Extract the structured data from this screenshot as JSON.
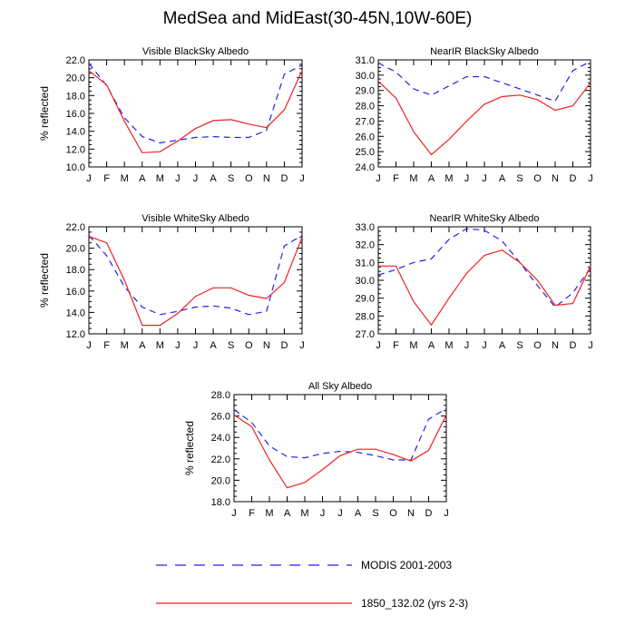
{
  "page": {
    "title": "MedSea and MidEast(30-45N,10W-60E)"
  },
  "legend": [
    {
      "name": "MODIS 2001-2003",
      "color": "#2222ee",
      "dash": true
    },
    {
      "name": "1850_132.02 (yrs 2-3)",
      "color": "#ee2222",
      "dash": false
    }
  ],
  "chart_data": [
    {
      "type": "line",
      "title": "Visible BlackSky Albedo",
      "ylabel": "% reflected",
      "categories": [
        "J",
        "F",
        "M",
        "A",
        "M",
        "J",
        "J",
        "A",
        "S",
        "O",
        "N",
        "D",
        "J"
      ],
      "ylim": [
        10,
        22
      ],
      "yticks": [
        "10.0",
        "12.0",
        "14.0",
        "16.0",
        "18.0",
        "20.0",
        "22.0"
      ],
      "series": [
        {
          "name": "MODIS 2001-2003",
          "color": "#2222ee",
          "dash": true,
          "values": [
            21.6,
            19.1,
            15.5,
            13.4,
            12.7,
            13.0,
            13.3,
            13.4,
            13.3,
            13.3,
            14.1,
            20.4,
            21.4
          ]
        },
        {
          "name": "1850_132.02 (yrs 2-3)",
          "color": "#ee2222",
          "dash": false,
          "values": [
            20.8,
            19.2,
            15.1,
            11.6,
            11.7,
            12.9,
            14.3,
            15.2,
            15.3,
            14.8,
            14.4,
            16.4,
            20.8
          ]
        }
      ]
    },
    {
      "type": "line",
      "title": "NearIR BlackSky Albedo",
      "ylabel": "",
      "categories": [
        "J",
        "F",
        "M",
        "A",
        "M",
        "J",
        "J",
        "A",
        "S",
        "O",
        "N",
        "D",
        "J"
      ],
      "ylim": [
        24,
        31
      ],
      "yticks": [
        "24.0",
        "25.0",
        "26.0",
        "27.0",
        "28.0",
        "29.0",
        "30.0",
        "31.0"
      ],
      "series": [
        {
          "name": "MODIS 2001-2003",
          "color": "#2222ee",
          "dash": true,
          "values": [
            30.8,
            30.2,
            29.1,
            28.7,
            29.3,
            29.9,
            29.9,
            29.5,
            29.1,
            28.7,
            28.3,
            30.3,
            30.9
          ]
        },
        {
          "name": "1850_132.02 (yrs 2-3)",
          "color": "#ee2222",
          "dash": false,
          "values": [
            29.6,
            28.5,
            26.3,
            24.8,
            25.8,
            27.0,
            28.1,
            28.6,
            28.7,
            28.4,
            27.7,
            28.0,
            29.5
          ]
        }
      ]
    },
    {
      "type": "line",
      "title": "Visible WhiteSky Albedo",
      "ylabel": "% reflected",
      "categories": [
        "J",
        "F",
        "M",
        "A",
        "M",
        "J",
        "J",
        "A",
        "S",
        "O",
        "N",
        "D",
        "J"
      ],
      "ylim": [
        12,
        22
      ],
      "yticks": [
        "12.0",
        "14.0",
        "16.0",
        "18.0",
        "20.0",
        "22.0"
      ],
      "series": [
        {
          "name": "MODIS 2001-2003",
          "color": "#2222ee",
          "dash": true,
          "values": [
            21.2,
            19.3,
            16.4,
            14.5,
            13.8,
            14.1,
            14.5,
            14.6,
            14.4,
            13.8,
            14.1,
            20.2,
            21.2
          ]
        },
        {
          "name": "1850_132.02 (yrs 2-3)",
          "color": "#ee2222",
          "dash": false,
          "values": [
            21.1,
            20.5,
            17.0,
            12.8,
            12.8,
            13.9,
            15.5,
            16.3,
            16.3,
            15.6,
            15.3,
            16.8,
            21.0
          ]
        }
      ]
    },
    {
      "type": "line",
      "title": "NearIR WhiteSky Albedo",
      "ylabel": "",
      "categories": [
        "J",
        "F",
        "M",
        "A",
        "M",
        "J",
        "J",
        "A",
        "S",
        "O",
        "N",
        "D",
        "J"
      ],
      "ylim": [
        27,
        33
      ],
      "yticks": [
        "27.0",
        "28.0",
        "29.0",
        "30.0",
        "31.0",
        "32.0",
        "33.0"
      ],
      "series": [
        {
          "name": "MODIS 2001-2003",
          "color": "#2222ee",
          "dash": true,
          "values": [
            30.3,
            30.6,
            31.0,
            31.2,
            32.3,
            32.9,
            32.8,
            32.2,
            31.0,
            29.7,
            28.5,
            29.3,
            30.7
          ]
        },
        {
          "name": "1850_132.02 (yrs 2-3)",
          "color": "#ee2222",
          "dash": false,
          "values": [
            30.8,
            30.8,
            28.8,
            27.5,
            29.0,
            30.4,
            31.4,
            31.7,
            31.0,
            30.0,
            28.6,
            28.7,
            30.8
          ]
        }
      ]
    },
    {
      "type": "line",
      "title": "All Sky Albedo",
      "ylabel": "% reflected",
      "categories": [
        "J",
        "F",
        "M",
        "A",
        "M",
        "J",
        "J",
        "A",
        "S",
        "O",
        "N",
        "D",
        "J"
      ],
      "ylim": [
        18,
        28
      ],
      "yticks": [
        "18.0",
        "20.0",
        "22.0",
        "24.0",
        "26.0",
        "28.0"
      ],
      "series": [
        {
          "name": "MODIS 2001-2003",
          "color": "#2222ee",
          "dash": true,
          "values": [
            26.6,
            25.4,
            23.2,
            22.2,
            22.1,
            22.5,
            22.7,
            22.6,
            22.3,
            21.9,
            21.9,
            25.7,
            26.7
          ]
        },
        {
          "name": "1850_132.02 (yrs 2-3)",
          "color": "#ee2222",
          "dash": false,
          "values": [
            26.1,
            25.0,
            21.9,
            19.3,
            19.8,
            21.0,
            22.3,
            22.9,
            22.9,
            22.4,
            21.8,
            22.8,
            26.1
          ]
        }
      ]
    }
  ]
}
